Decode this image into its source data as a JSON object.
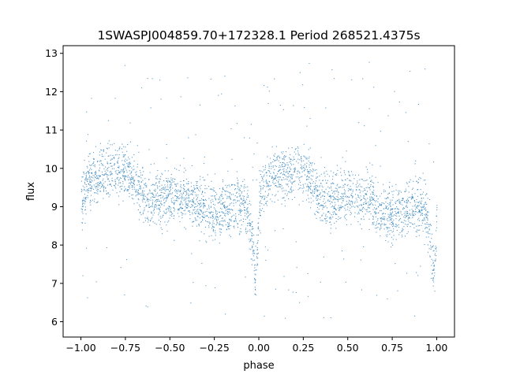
{
  "chart_data": {
    "type": "scatter",
    "title": "1SWASPJ004859.70+172328.1 Period 268521.4375s",
    "xlabel": "phase",
    "ylabel": "flux",
    "xlim": [
      -1.1,
      1.1
    ],
    "ylim": [
      5.6,
      13.2
    ],
    "xticks": [
      -1.0,
      -0.75,
      -0.5,
      -0.25,
      0.0,
      0.25,
      0.5,
      0.75,
      1.0
    ],
    "xtick_labels": [
      "−1.00",
      "−0.75",
      "−0.50",
      "−0.25",
      "0.00",
      "0.25",
      "0.50",
      "0.75",
      "1.00"
    ],
    "yticks": [
      6,
      7,
      8,
      9,
      10,
      11,
      12,
      13
    ],
    "ytick_labels": [
      "6",
      "7",
      "8",
      "9",
      "10",
      "11",
      "12",
      "13"
    ],
    "grid": false,
    "marker_color": "#1f77b4",
    "series": [
      {
        "x_range": [
          -1.0,
          1.0
        ],
        "periodic_in_x": 1.0,
        "trend": {
          "x": [
            0.0,
            0.01,
            0.03,
            0.06,
            0.1,
            0.15,
            0.2,
            0.25,
            0.3,
            0.35,
            0.4,
            0.45,
            0.5,
            0.55,
            0.6,
            0.65,
            0.7,
            0.75,
            0.8,
            0.85,
            0.88,
            0.91,
            0.935,
            0.95,
            0.965,
            0.975,
            0.985,
            1.0
          ],
          "y": [
            9.1,
            9.3,
            9.6,
            9.8,
            9.85,
            9.9,
            10.0,
            9.95,
            9.6,
            9.3,
            9.2,
            9.25,
            9.35,
            9.3,
            9.2,
            9.05,
            8.9,
            8.85,
            8.9,
            9.0,
            9.05,
            9.0,
            8.9,
            8.5,
            8.0,
            7.4,
            7.2,
            9.1
          ]
        },
        "spread_flux": 0.35,
        "outlier_flux_range": [
          6.0,
          12.8
        ]
      }
    ]
  }
}
